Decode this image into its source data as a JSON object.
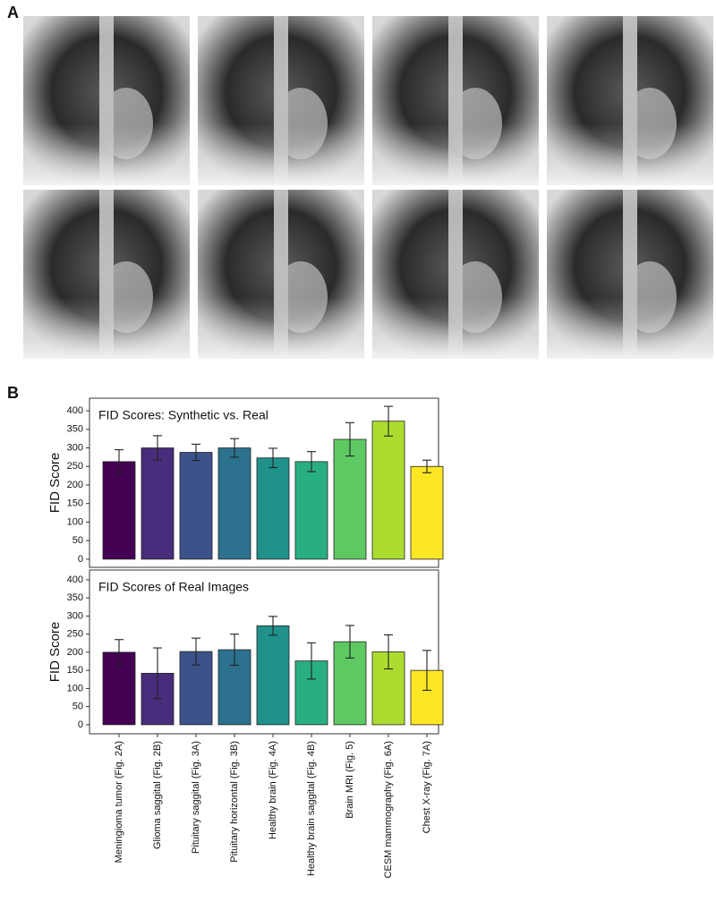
{
  "panel_labels": [
    "A",
    "B"
  ],
  "chart_data": [
    {
      "type": "bar",
      "title": "FID Scores: Synthetic vs. Real",
      "y_label": "FID Score",
      "values": [
        263,
        300,
        288,
        300,
        273,
        263,
        323,
        372,
        250
      ],
      "errors": [
        32,
        33,
        22,
        25,
        26,
        27,
        45,
        40,
        17
      ],
      "colors": [
        "#440154",
        "#472d7b",
        "#3b528b",
        "#2c728e",
        "#21918c",
        "#28ae80",
        "#5ec962",
        "#addc30",
        "#fde725"
      ],
      "ylim": [
        -22,
        434
      ],
      "yticks": [
        0,
        50,
        100,
        150,
        200,
        250,
        300,
        350,
        400
      ]
    },
    {
      "type": "bar",
      "title": "FID Scores of Real Images",
      "y_label": "FID Score",
      "categories": [
        "Meningioma tumor (Fig. 2A)",
        "Glioma saggital (Fig. 2B)",
        "Pituitary saggital (Fig. 3A)",
        "Pituitary horizontal (Fig. 3B)",
        "Healthy brain (Fig. 4A)",
        "Healthy brain saggital (Fig. 4B)",
        "Brain MRI (Fig. 5)",
        "CESM mammography (Fig. 6A)",
        "Chest X-ray (Fig. 7A)"
      ],
      "values": [
        200,
        142,
        202,
        207,
        273,
        176,
        229,
        201,
        150
      ],
      "errors": [
        35,
        70,
        37,
        43,
        26,
        50,
        45,
        47,
        55
      ],
      "colors": [
        "#440154",
        "#472d7b",
        "#3b528b",
        "#2c728e",
        "#21918c",
        "#28ae80",
        "#5ec962",
        "#addc30",
        "#fde725"
      ],
      "ylim": [
        -25,
        427
      ],
      "yticks": [
        0,
        50,
        100,
        150,
        200,
        250,
        300,
        350,
        400
      ]
    }
  ]
}
